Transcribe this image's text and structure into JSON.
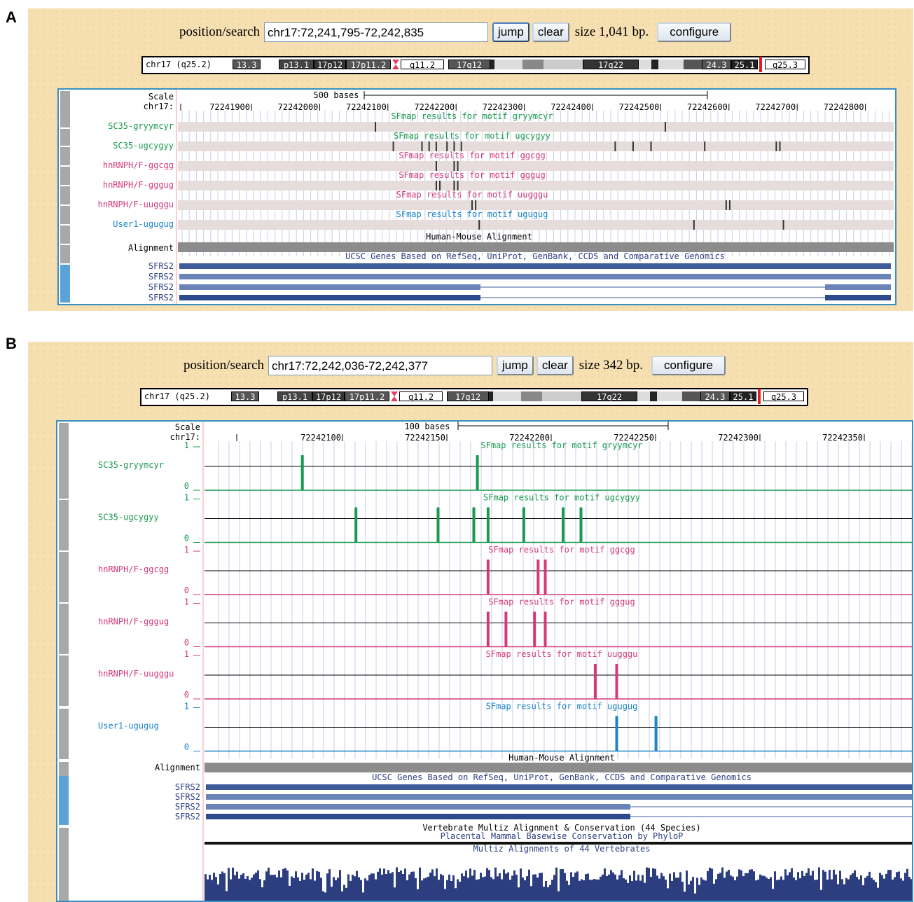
{
  "panels": [
    {
      "letter": "A",
      "search": {
        "label": "position/search",
        "value": "chr17:72,241,795-72,242,835",
        "jump": "jump",
        "clear": "clear",
        "size": "size 1,041 bp.",
        "configure": "configure"
      },
      "ideogram": {
        "chrom_label": "chr17 (q25.2)",
        "bands": [
          "13.3",
          "p13.1",
          "17p12",
          "17p11.2",
          "q11.2",
          "17q12",
          "17q22",
          "24.3",
          "25.1",
          "q25.3"
        ]
      },
      "scale": {
        "label": "Scale",
        "chrom": "chr17:",
        "bar_label": "500 bases",
        "ticks": [
          "72241900",
          "72242000",
          "72242100",
          "72242200",
          "72242300",
          "72242400",
          "72242500",
          "72242600",
          "72242700",
          "72242800"
        ]
      },
      "tracks": [
        {
          "name": "SC35-gryymcyr",
          "title": "SFmap results for motif gryymcyr",
          "color": "#1a9a50"
        },
        {
          "name": "SC35-ugcygyy",
          "title": "SFmap results for motif ugcygyy",
          "color": "#1a9a50"
        },
        {
          "name": "hnRNPH/F-ggcgg",
          "title": "SFmap results for motif ggcgg",
          "color": "#d43a7a"
        },
        {
          "name": "hnRNPH/F-gggug",
          "title": "SFmap results for motif gggug",
          "color": "#d43a7a"
        },
        {
          "name": "hnRNPH/F-uugggu",
          "title": "SFmap results for motif uugggu",
          "color": "#d43a7a"
        },
        {
          "name": "User1-ugugug",
          "title": "SFmap results for motif ugugug",
          "color": "#1a84c8"
        }
      ],
      "alignment": {
        "label": "Alignment",
        "title": "Human-Mouse Alignment"
      },
      "genes": {
        "title": "UCSC Genes Based on RefSeq, UniProt, GenBank, CCDS and Comparative Genomics",
        "names": [
          "SFRS2",
          "SFRS2",
          "SFRS2",
          "SFRS2"
        ]
      }
    },
    {
      "letter": "B",
      "search": {
        "label": "position/search",
        "value": "chr17:72,242,036-72,242,377",
        "jump": "jump",
        "clear": "clear",
        "size": "size 342 bp.",
        "configure": "configure"
      },
      "ideogram": {
        "chrom_label": "chr17 (q25.2)",
        "bands": [
          "13.3",
          "p13.1",
          "17p12",
          "17p11.2",
          "q11.2",
          "17q12",
          "17q22",
          "24.3",
          "25.1",
          "q25.3"
        ]
      },
      "scale": {
        "label": "Scale",
        "chrom": "chr17:",
        "bar_label": "100 bases",
        "ticks": [
          "72242100",
          "72242150",
          "72242200",
          "72242250",
          "72242300",
          "72242350"
        ]
      },
      "tracks": [
        {
          "name": "SC35-gryymcyr",
          "title": "SFmap results for motif gryymcyr",
          "color": "#1a9a50",
          "max": "1",
          "min": "0"
        },
        {
          "name": "SC35-ugcygyy",
          "title": "SFmap results for motif ugcygyy",
          "color": "#1a9a50",
          "max": "1",
          "min": "0"
        },
        {
          "name": "hnRNPH/F-ggcgg",
          "title": "SFmap results for motif ggcgg",
          "color": "#d43a7a",
          "max": "1",
          "min": "0"
        },
        {
          "name": "hnRNPH/F-gggug",
          "title": "SFmap results for motif gggug",
          "color": "#d43a7a",
          "max": "1",
          "min": "0"
        },
        {
          "name": "hnRNPH/F-uugggu",
          "title": "SFmap results for motif uugggu",
          "color": "#d43a7a",
          "max": "1",
          "min": "0"
        },
        {
          "name": "User1-ugugug",
          "title": "SFmap results for motif ugugug",
          "color": "#1a84c8",
          "max": "1",
          "min": "0"
        }
      ],
      "alignment": {
        "label": "Alignment",
        "title": "Human-Mouse Alignment"
      },
      "genes": {
        "title": "UCSC Genes Based on RefSeq, UniProt, GenBank, CCDS and Comparative Genomics",
        "names": [
          "SFRS2",
          "SFRS2",
          "SFRS2",
          "SFRS2"
        ]
      },
      "conservation": {
        "title": "Vertebrate Multiz Alignment & Conservation (44 Species)",
        "phylop": "Placental Mammal Basewise Conservation by PhyloP",
        "multiz": "Multiz Alignments of 44 Vertebrates"
      }
    }
  ],
  "hits": {
    "A": [
      [
        0.275,
        0.68
      ],
      [
        0.3,
        0.34,
        0.35,
        0.36,
        0.375,
        0.385,
        0.395,
        0.61,
        0.635,
        0.66,
        0.735,
        0.835,
        0.84
      ],
      [
        0.36,
        0.385,
        0.39
      ],
      [
        0.36,
        0.365,
        0.385,
        0.39
      ],
      [
        0.41,
        0.415,
        0.765,
        0.77
      ],
      [
        0.42,
        0.72,
        0.845
      ]
    ],
    "B": [
      [
        0.135,
        0.38
      ],
      [
        0.21,
        0.325,
        0.375,
        0.395,
        0.445,
        0.5,
        0.525
      ],
      [
        0.395,
        0.465,
        0.475
      ],
      [
        0.395,
        0.42,
        0.46,
        0.475
      ],
      [
        0.545,
        0.575
      ],
      [
        0.575,
        0.63
      ]
    ]
  }
}
